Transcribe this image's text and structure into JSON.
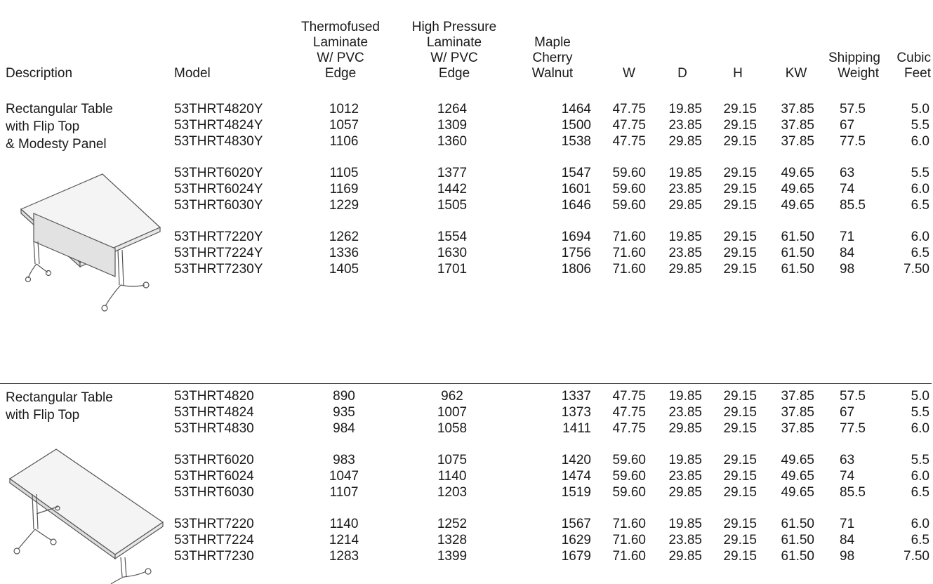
{
  "headers": {
    "description": "Description",
    "model": "Model",
    "thermofused": [
      "Thermofused",
      "Laminate",
      "W/ PVC",
      "Edge"
    ],
    "high_pressure": [
      "High Pressure",
      "Laminate",
      "W/ PVC",
      "Edge"
    ],
    "maple": [
      "Maple",
      "Cherry",
      "Walnut"
    ],
    "w": "W",
    "d": "D",
    "h": "H",
    "kw": "KW",
    "shipping": [
      "Shipping",
      "Weight"
    ],
    "cubic": [
      "Cubic",
      "Feet"
    ]
  },
  "sections": [
    {
      "description": [
        "Rectangular Table",
        "with Flip Top",
        "& Modesty Panel"
      ],
      "illustration": "flip-top-table-with-modesty-panel",
      "groups": [
        [
          {
            "model": "53THRT4820Y",
            "tl": "1012",
            "hp": "1264",
            "mcw": "1464",
            "w": "47.75",
            "d": "19.85",
            "h": "29.15",
            "kw": "37.85",
            "ship": "57.5",
            "cubic": "5.0"
          },
          {
            "model": "53THRT4824Y",
            "tl": "1057",
            "hp": "1309",
            "mcw": "1500",
            "w": "47.75",
            "d": "23.85",
            "h": "29.15",
            "kw": "37.85",
            "ship": "67",
            "cubic": "5.5"
          },
          {
            "model": "53THRT4830Y",
            "tl": "1106",
            "hp": "1360",
            "mcw": "1538",
            "w": "47.75",
            "d": "29.85",
            "h": "29.15",
            "kw": "37.85",
            "ship": "77.5",
            "cubic": "6.0"
          }
        ],
        [
          {
            "model": "53THRT6020Y",
            "tl": "1105",
            "hp": "1377",
            "mcw": "1547",
            "w": "59.60",
            "d": "19.85",
            "h": "29.15",
            "kw": "49.65",
            "ship": "63",
            "cubic": "5.5"
          },
          {
            "model": "53THRT6024Y",
            "tl": "1169",
            "hp": "1442",
            "mcw": "1601",
            "w": "59.60",
            "d": "23.85",
            "h": "29.15",
            "kw": "49.65",
            "ship": "74",
            "cubic": "6.0"
          },
          {
            "model": "53THRT6030Y",
            "tl": "1229",
            "hp": "1505",
            "mcw": "1646",
            "w": "59.60",
            "d": "29.85",
            "h": "29.15",
            "kw": "49.65",
            "ship": "85.5",
            "cubic": "6.5"
          }
        ],
        [
          {
            "model": "53THRT7220Y",
            "tl": "1262",
            "hp": "1554",
            "mcw": "1694",
            "w": "71.60",
            "d": "19.85",
            "h": "29.15",
            "kw": "61.50",
            "ship": "71",
            "cubic": "6.0"
          },
          {
            "model": "53THRT7224Y",
            "tl": "1336",
            "hp": "1630",
            "mcw": "1756",
            "w": "71.60",
            "d": "23.85",
            "h": "29.15",
            "kw": "61.50",
            "ship": "84",
            "cubic": "6.5"
          },
          {
            "model": "53THRT7230Y",
            "tl": "1405",
            "hp": "1701",
            "mcw": "1806",
            "w": "71.60",
            "d": "29.85",
            "h": "29.15",
            "kw": "61.50",
            "ship": "98",
            "cubic": "7.50"
          }
        ]
      ]
    },
    {
      "description": [
        "Rectangular Table",
        "with Flip Top"
      ],
      "illustration": "flip-top-table",
      "groups": [
        [
          {
            "model": "53THRT4820",
            "tl": "890",
            "hp": "962",
            "mcw": "1337",
            "w": "47.75",
            "d": "19.85",
            "h": "29.15",
            "kw": "37.85",
            "ship": "57.5",
            "cubic": "5.0"
          },
          {
            "model": "53THRT4824",
            "tl": "935",
            "hp": "1007",
            "mcw": "1373",
            "w": "47.75",
            "d": "23.85",
            "h": "29.15",
            "kw": "37.85",
            "ship": "67",
            "cubic": "5.5"
          },
          {
            "model": "53THRT4830",
            "tl": "984",
            "hp": "1058",
            "mcw": "1411",
            "w": "47.75",
            "d": "29.85",
            "h": "29.15",
            "kw": "37.85",
            "ship": "77.5",
            "cubic": "6.0"
          }
        ],
        [
          {
            "model": "53THRT6020",
            "tl": "983",
            "hp": "1075",
            "mcw": "1420",
            "w": "59.60",
            "d": "19.85",
            "h": "29.15",
            "kw": "49.65",
            "ship": "63",
            "cubic": "5.5"
          },
          {
            "model": "53THRT6024",
            "tl": "1047",
            "hp": "1140",
            "mcw": "1474",
            "w": "59.60",
            "d": "23.85",
            "h": "29.15",
            "kw": "49.65",
            "ship": "74",
            "cubic": "6.0"
          },
          {
            "model": "53THRT6030",
            "tl": "1107",
            "hp": "1203",
            "mcw": "1519",
            "w": "59.60",
            "d": "29.85",
            "h": "29.15",
            "kw": "49.65",
            "ship": "85.5",
            "cubic": "6.5"
          }
        ],
        [
          {
            "model": "53THRT7220",
            "tl": "1140",
            "hp": "1252",
            "mcw": "1567",
            "w": "71.60",
            "d": "19.85",
            "h": "29.15",
            "kw": "61.50",
            "ship": "71",
            "cubic": "6.0"
          },
          {
            "model": "53THRT7224",
            "tl": "1214",
            "hp": "1328",
            "mcw": "1629",
            "w": "71.60",
            "d": "23.85",
            "h": "29.15",
            "kw": "61.50",
            "ship": "84",
            "cubic": "6.5"
          },
          {
            "model": "53THRT7230",
            "tl": "1283",
            "hp": "1399",
            "mcw": "1679",
            "w": "71.60",
            "d": "29.85",
            "h": "29.15",
            "kw": "61.50",
            "ship": "98",
            "cubic": "7.50"
          }
        ]
      ]
    }
  ]
}
